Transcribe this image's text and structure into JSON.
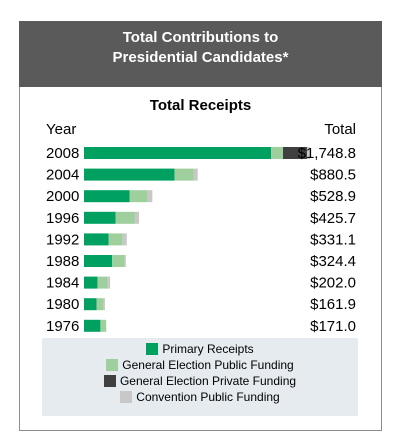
{
  "header": {
    "line1": "Total Contributions to",
    "line2": "Presidential Candidates*"
  },
  "chart_data": {
    "type": "bar",
    "orientation": "horizontal",
    "stacked": true,
    "title": "Total Receipts",
    "column_left": "Year",
    "column_right": "Total",
    "categories": [
      "2008",
      "2004",
      "2000",
      "1996",
      "1992",
      "1988",
      "1984",
      "1980",
      "1976"
    ],
    "totals_labels": [
      "$1,748.8",
      "$880.5",
      "$528.9",
      "$425.7",
      "$331.1",
      "$324.4",
      "$202.0",
      "$161.9",
      "$171.0"
    ],
    "series": [
      {
        "name": "Primary Receipts",
        "color": "#00a060",
        "values": [
          1448,
          700,
          352,
          244,
          190,
          218,
          104,
          98,
          127
        ]
      },
      {
        "name": "General Election Public Funding",
        "color": "#9ecf9c",
        "values": [
          92,
          150,
          140,
          150,
          110,
          96,
          80,
          55,
          45
        ]
      },
      {
        "name": "General Election Private Funding",
        "color": "#404040",
        "values": [
          186,
          0,
          0,
          0,
          0,
          0,
          0,
          0,
          0
        ]
      },
      {
        "name": "Convention Public Funding",
        "color": "#c8c8c8",
        "values": [
          22,
          30,
          37,
          32,
          31,
          10,
          18,
          9,
          0
        ]
      }
    ],
    "xlim": [
      0,
      1950
    ],
    "legend": "bottom"
  }
}
